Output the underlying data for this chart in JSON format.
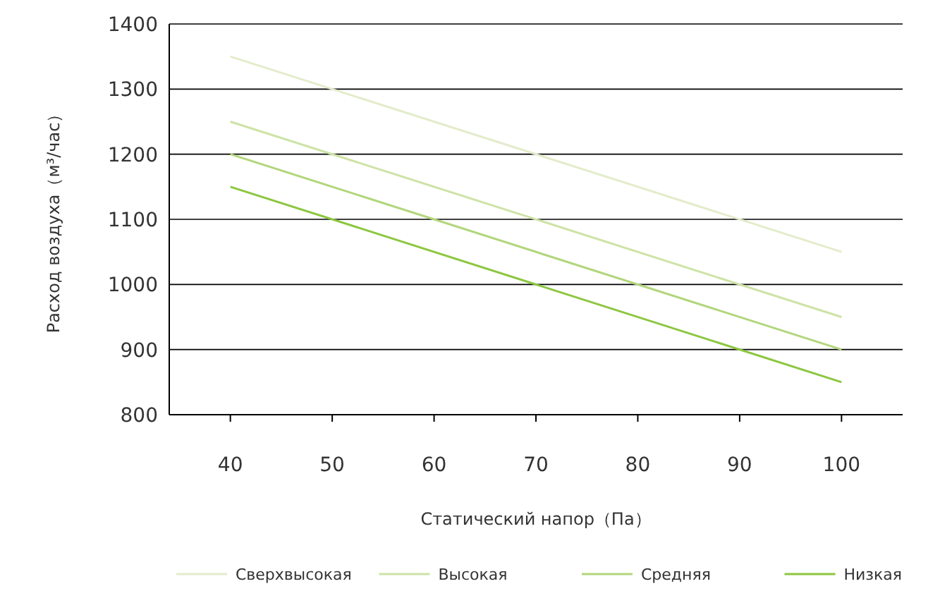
{
  "chart_data": {
    "type": "line",
    "xlabel": "Статический напор（Па）",
    "ylabel": "Расход воздуха（м³/час）",
    "x": [
      40,
      100
    ],
    "xlim": [
      34,
      106
    ],
    "xticks": [
      40,
      50,
      60,
      70,
      80,
      90,
      100
    ],
    "ylim": [
      800,
      1400
    ],
    "yticks": [
      800,
      900,
      1000,
      1100,
      1200,
      1300,
      1400
    ],
    "grid": "y",
    "legend": "bottom",
    "marker": "none",
    "line_style": "solid",
    "series": [
      {
        "name": "Сверхвысокая",
        "color": "#e3eccb",
        "values": [
          1350,
          1050
        ]
      },
      {
        "name": "Высокая",
        "color": "#cde3a6",
        "values": [
          1250,
          950
        ]
      },
      {
        "name": "Средняя",
        "color": "#b2d67c",
        "values": [
          1200,
          900
        ]
      },
      {
        "name": "Низкая",
        "color": "#8cc63f",
        "values": [
          1150,
          850
        ]
      }
    ]
  }
}
